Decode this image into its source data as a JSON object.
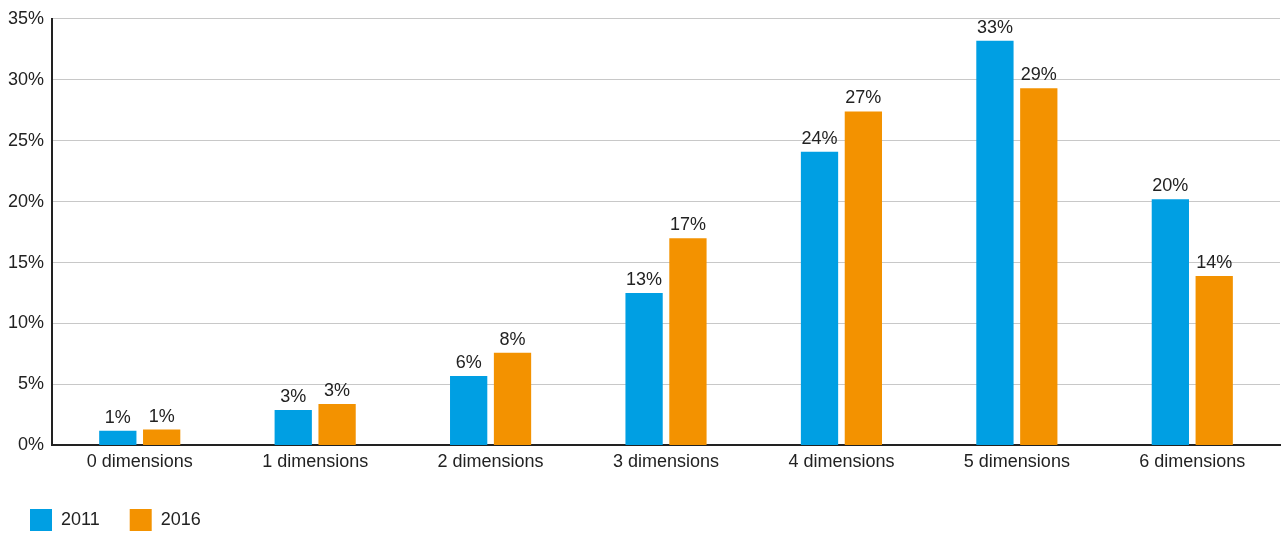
{
  "chart_data": {
    "type": "bar",
    "categories": [
      "0 dimensions",
      "1 dimensions",
      "2 dimensions",
      "3 dimensions",
      "4 dimensions",
      "5 dimensions",
      "6 dimensions"
    ],
    "series": [
      {
        "name": "2011",
        "color": "#009fe3",
        "values": [
          1.2,
          2.9,
          5.7,
          12.5,
          24.1,
          33.2,
          20.2
        ],
        "value_labels": [
          "1%",
          "3%",
          "6%",
          "13%",
          "24%",
          "33%",
          "20%"
        ]
      },
      {
        "name": "2016",
        "color": "#f39200",
        "values": [
          1.3,
          3.4,
          7.6,
          17.0,
          27.4,
          29.3,
          13.9
        ],
        "value_labels": [
          "1%",
          "3%",
          "8%",
          "17%",
          "27%",
          "29%",
          "14%"
        ]
      }
    ],
    "ylim": [
      0,
      35
    ],
    "yticks": [
      {
        "value": 0,
        "label": "0%"
      },
      {
        "value": 5,
        "label": "5%"
      },
      {
        "value": 10,
        "label": "10%"
      },
      {
        "value": 15,
        "label": "15%"
      },
      {
        "value": 20,
        "label": "20%"
      },
      {
        "value": 25,
        "label": "25%"
      },
      {
        "value": 30,
        "label": "30%"
      },
      {
        "value": 35,
        "label": "35%"
      }
    ],
    "grid": "y",
    "legend": "bottom left"
  }
}
